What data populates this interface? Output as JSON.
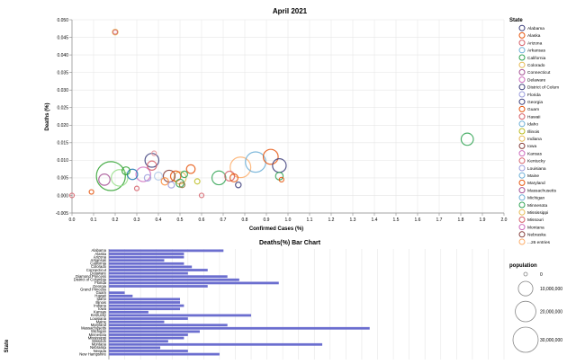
{
  "chart_data": [
    {
      "type": "scatter",
      "title": "April 2021",
      "xlabel": "Confirmed Cases (%)",
      "ylabel": "Deaths (%)",
      "xlim": [
        0.0,
        2.0
      ],
      "ylim": [
        -0.005,
        0.05
      ],
      "x_ticks": [
        "0.0",
        "0.1",
        "0.2",
        "0.3",
        "0.4",
        "0.5",
        "0.6",
        "0.7",
        "0.8",
        "0.9",
        "1.0",
        "1.1",
        "1.2",
        "1.3",
        "1.4",
        "1.5",
        "1.6",
        "1.7",
        "1.8",
        "1.9",
        "2.0"
      ],
      "y_ticks": [
        "-0.005",
        "0.000",
        "0.005",
        "0.010",
        "0.015",
        "0.020",
        "0.025",
        "0.030",
        "0.035",
        "0.040",
        "0.045",
        "0.050"
      ],
      "grid": true,
      "points": [
        {
          "x": 0.2,
          "y": 0.0465,
          "pop": 1500000,
          "color": "#e7ba52"
        },
        {
          "x": 0.2,
          "y": 0.0465,
          "pop": 900000,
          "color": "#d6616b"
        },
        {
          "x": 0.18,
          "y": 0.0055,
          "pop": 39500000,
          "color": "#2ca02c"
        },
        {
          "x": 0.22,
          "y": 0.005,
          "pop": 12800000,
          "color": "#98df8a"
        },
        {
          "x": 0.15,
          "y": 0.0045,
          "pop": 6000000,
          "color": "#a55194"
        },
        {
          "x": 0.25,
          "y": 0.007,
          "pop": 3000000,
          "color": "#2ca02c"
        },
        {
          "x": 0.28,
          "y": 0.006,
          "pop": 5000000,
          "color": "#1f77b4"
        },
        {
          "x": 0.3,
          "y": 0.002,
          "pop": 400000,
          "color": "#d6616b"
        },
        {
          "x": 0.33,
          "y": 0.006,
          "pop": 10000000,
          "color": "#ce6dbd"
        },
        {
          "x": 0.35,
          "y": 0.005,
          "pop": 2000000,
          "color": "#9c9ede"
        },
        {
          "x": 0.37,
          "y": 0.01,
          "pop": 9000000,
          "color": "#393b79"
        },
        {
          "x": 0.37,
          "y": 0.0085,
          "pop": 4000000,
          "color": "#d6616b"
        },
        {
          "x": 0.38,
          "y": 0.012,
          "pop": 1000000,
          "color": "#e7969c"
        },
        {
          "x": 0.4,
          "y": 0.0055,
          "pop": 3000000,
          "color": "#aec7e8"
        },
        {
          "x": 0.43,
          "y": 0.004,
          "pop": 2500000,
          "color": "#fd8d3c"
        },
        {
          "x": 0.45,
          "y": 0.0055,
          "pop": 6500000,
          "color": "#843c39"
        },
        {
          "x": 0.46,
          "y": 0.003,
          "pop": 1800000,
          "color": "#9c9ede"
        },
        {
          "x": 0.48,
          "y": 0.0055,
          "pop": 5000000,
          "color": "#e6550d"
        },
        {
          "x": 0.5,
          "y": 0.005,
          "pop": 7000000,
          "color": "#e7ba52"
        },
        {
          "x": 0.5,
          "y": 0.0035,
          "pop": 3000000,
          "color": "#31a354"
        },
        {
          "x": 0.51,
          "y": 0.003,
          "pop": 1400000,
          "color": "#8c6d31"
        },
        {
          "x": 0.52,
          "y": 0.006,
          "pop": 2000000,
          "color": "#31a354"
        },
        {
          "x": 0.55,
          "y": 0.0075,
          "pop": 3500000,
          "color": "#e6550d"
        },
        {
          "x": 0.58,
          "y": 0.004,
          "pop": 1300000,
          "color": "#bcbd22"
        },
        {
          "x": 0.6,
          "y": 0.0,
          "pop": 900000,
          "color": "#d6616b"
        },
        {
          "x": 0.68,
          "y": 0.005,
          "pop": 9000000,
          "color": "#31a354"
        },
        {
          "x": 0.73,
          "y": 0.0055,
          "pop": 4500000,
          "color": "#d6616b"
        },
        {
          "x": 0.75,
          "y": 0.005,
          "pop": 3000000,
          "color": "#e6550d"
        },
        {
          "x": 0.77,
          "y": 0.003,
          "pop": 1500000,
          "color": "#393b79"
        },
        {
          "x": 0.78,
          "y": 0.008,
          "pop": 20000000,
          "color": "#fdae6b"
        },
        {
          "x": 0.85,
          "y": 0.0095,
          "pop": 19500000,
          "color": "#6baed6"
        },
        {
          "x": 0.92,
          "y": 0.011,
          "pop": 10500000,
          "color": "#e6550d"
        },
        {
          "x": 0.96,
          "y": 0.0085,
          "pop": 8800000,
          "color": "#393b79"
        },
        {
          "x": 0.96,
          "y": 0.0055,
          "pop": 2700000,
          "color": "#31a354"
        },
        {
          "x": 0.97,
          "y": 0.0045,
          "pop": 1000000,
          "color": "#e6550d"
        },
        {
          "x": 1.83,
          "y": 0.016,
          "pop": 7000000,
          "color": "#31a354"
        },
        {
          "x": 0.0,
          "y": 0.0,
          "pop": 160000,
          "color": "#d6616b"
        },
        {
          "x": 0.09,
          "y": 0.001,
          "pop": 730000,
          "color": "#e6550d"
        }
      ],
      "legend": {
        "title": "State",
        "entries": [
          {
            "label": "Alabama",
            "color": "#393b79"
          },
          {
            "label": "Alaska",
            "color": "#e6550d"
          },
          {
            "label": "Arizona",
            "color": "#d6616b"
          },
          {
            "label": "Arkansas",
            "color": "#6baed6"
          },
          {
            "label": "California",
            "color": "#31a354"
          },
          {
            "label": "Colorado",
            "color": "#e7ba52"
          },
          {
            "label": "Connecticut",
            "color": "#a55194"
          },
          {
            "label": "Delaware",
            "color": "#ce6dbd"
          },
          {
            "label": "District of Colum",
            "color": "#393b79"
          },
          {
            "label": "Florida",
            "color": "#9c9ede"
          },
          {
            "label": "Georgia",
            "color": "#393b79"
          },
          {
            "label": "Guam",
            "color": "#e6550d"
          },
          {
            "label": "Hawaii",
            "color": "#d6616b"
          },
          {
            "label": "Idaho",
            "color": "#6baed6"
          },
          {
            "label": "Illinois",
            "color": "#bcbd22"
          },
          {
            "label": "Indiana",
            "color": "#e7ba52"
          },
          {
            "label": "Iowa",
            "color": "#843c39"
          },
          {
            "label": "Kansas",
            "color": "#ce6dbd"
          },
          {
            "label": "Kentucky",
            "color": "#d6616b"
          },
          {
            "label": "Louisiana",
            "color": "#9c9ede"
          },
          {
            "label": "Maine",
            "color": "#6baed6"
          },
          {
            "label": "Maryland",
            "color": "#e6550d"
          },
          {
            "label": "Massachusetts",
            "color": "#a55194"
          },
          {
            "label": "Michigan",
            "color": "#6baed6"
          },
          {
            "label": "Minnesota",
            "color": "#31a354"
          },
          {
            "label": "Mississippi",
            "color": "#e7ba52"
          },
          {
            "label": "Missouri",
            "color": "#d6616b"
          },
          {
            "label": "Montana",
            "color": "#ce6dbd"
          },
          {
            "label": "Nebraska",
            "color": "#843c39"
          },
          {
            "label": "...26 entries",
            "color": "#fdae6b"
          }
        ]
      },
      "size_legend": {
        "title": "population",
        "entries": [
          {
            "label": "0",
            "value": 0
          },
          {
            "label": "10,000,000",
            "value": 10000000
          },
          {
            "label": "20,000,000",
            "value": 20000000
          },
          {
            "label": "30,000,000",
            "value": 30000000
          }
        ]
      }
    },
    {
      "type": "bar",
      "orientation": "horizontal",
      "title": "Deaths(%) Bar Chart",
      "ylabel": "State",
      "xlim": [
        0.0,
        0.05
      ],
      "color": "#6b6ecf",
      "categories": [
        "Alabama",
        "Alaska",
        "Arizona",
        "Arkansas",
        "California",
        "Colorado",
        "Connecticut",
        "Delaware",
        "Diamond Princess",
        "District of Columbia",
        "Florida",
        "Georgia",
        "Grand Princess",
        "Guam",
        "Hawaii",
        "Idaho",
        "Illinois",
        "Indiana",
        "Iowa",
        "Kansas",
        "Kentucky",
        "Louisiana",
        "Maine",
        "Maryland",
        "Massachusetts",
        "Michigan",
        "Minnesota",
        "Mississippi",
        "Missouri",
        "Montana",
        "Nebraska",
        "Nevada",
        "New Hampshire"
      ],
      "values": [
        0.0145,
        0.0095,
        0.0095,
        0.007,
        0.0095,
        0.0105,
        0.0125,
        0.01,
        0.015,
        0.0165,
        0.0215,
        0.0125,
        0.0,
        0.002,
        0.003,
        0.009,
        0.009,
        0.0095,
        0.009,
        0.005,
        0.018,
        0.01,
        0.007,
        0.015,
        0.033,
        0.0115,
        0.01,
        0.0095,
        0.0075,
        0.027,
        0.0065,
        0.01,
        0.014
      ]
    }
  ]
}
